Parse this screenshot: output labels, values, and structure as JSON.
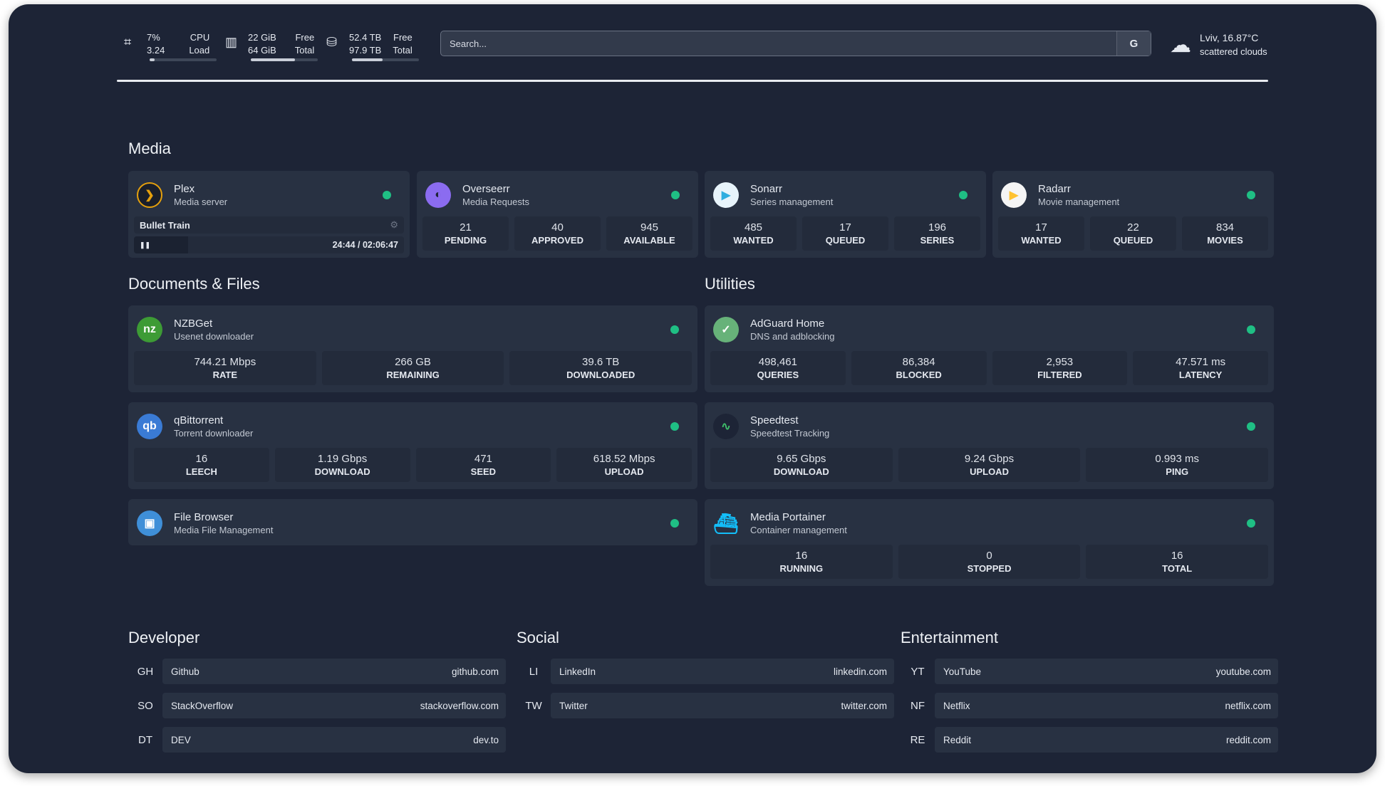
{
  "header": {
    "cpu": {
      "icon": "cpu-icon",
      "value1": "7%",
      "value2": "3.24",
      "label1": "CPU",
      "label2": "Load",
      "usage_percent": 7
    },
    "memory": {
      "icon": "memory-icon",
      "value1": "22 GiB",
      "value2": "64 GiB",
      "label1": "Free",
      "label2": "Total",
      "usage_percent": 66
    },
    "disk": {
      "icon": "disk-icon",
      "value1": "52.4 TB",
      "value2": "97.9 TB",
      "label1": "Free",
      "label2": "Total",
      "usage_percent": 46
    },
    "search": {
      "placeholder": "Search...",
      "button": "G"
    },
    "weather": {
      "icon": "cloud-icon",
      "location": "Lviv, 16.87°C",
      "condition": "scattered clouds"
    }
  },
  "colors": {
    "background": "#1d2436",
    "card": "#283142",
    "status_ok": "#1fbf84"
  },
  "media": {
    "title": "Media",
    "cards": [
      {
        "name": "Plex",
        "desc": "Media server",
        "icon": "plex-icon",
        "now_playing": {
          "title": "Bullet Train",
          "time": "24:44 / 02:06:47",
          "progress_percent": 20
        }
      },
      {
        "name": "Overseerr",
        "desc": "Media Requests",
        "icon": "overseerr-icon",
        "stats": [
          {
            "v": "21",
            "l": "PENDING"
          },
          {
            "v": "40",
            "l": "APPROVED"
          },
          {
            "v": "945",
            "l": "AVAILABLE"
          }
        ]
      },
      {
        "name": "Sonarr",
        "desc": "Series management",
        "icon": "sonarr-icon",
        "stats": [
          {
            "v": "485",
            "l": "WANTED"
          },
          {
            "v": "17",
            "l": "QUEUED"
          },
          {
            "v": "196",
            "l": "SERIES"
          }
        ]
      },
      {
        "name": "Radarr",
        "desc": "Movie management",
        "icon": "radarr-icon",
        "stats": [
          {
            "v": "17",
            "l": "WANTED"
          },
          {
            "v": "22",
            "l": "QUEUED"
          },
          {
            "v": "834",
            "l": "MOVIES"
          }
        ]
      }
    ]
  },
  "documents": {
    "title": "Documents & Files",
    "cards": [
      {
        "name": "NZBGet",
        "desc": "Usenet downloader",
        "icon": "nzbget-icon",
        "stats": [
          {
            "v": "744.21 Mbps",
            "l": "RATE"
          },
          {
            "v": "266 GB",
            "l": "REMAINING"
          },
          {
            "v": "39.6 TB",
            "l": "DOWNLOADED"
          }
        ]
      },
      {
        "name": "qBittorrent",
        "desc": "Torrent downloader",
        "icon": "qbittorrent-icon",
        "stats": [
          {
            "v": "16",
            "l": "LEECH"
          },
          {
            "v": "1.19 Gbps",
            "l": "DOWNLOAD"
          },
          {
            "v": "471",
            "l": "SEED"
          },
          {
            "v": "618.52 Mbps",
            "l": "UPLOAD"
          }
        ]
      },
      {
        "name": "File Browser",
        "desc": "Media File Management",
        "icon": "file-browser-icon"
      }
    ]
  },
  "utilities": {
    "title": "Utilities",
    "cards": [
      {
        "name": "AdGuard Home",
        "desc": "DNS and adblocking",
        "icon": "adguard-icon",
        "stats": [
          {
            "v": "498,461",
            "l": "QUERIES"
          },
          {
            "v": "86,384",
            "l": "BLOCKED"
          },
          {
            "v": "2,953",
            "l": "FILTERED"
          },
          {
            "v": "47.571 ms",
            "l": "LATENCY"
          }
        ]
      },
      {
        "name": "Speedtest",
        "desc": "Speedtest Tracking",
        "icon": "speedtest-icon",
        "stats": [
          {
            "v": "9.65 Gbps",
            "l": "DOWNLOAD"
          },
          {
            "v": "9.24 Gbps",
            "l": "UPLOAD"
          },
          {
            "v": "0.993 ms",
            "l": "PING"
          }
        ]
      },
      {
        "name": "Media Portainer",
        "desc": "Container management",
        "icon": "portainer-icon",
        "stats": [
          {
            "v": "16",
            "l": "RUNNING"
          },
          {
            "v": "0",
            "l": "STOPPED"
          },
          {
            "v": "16",
            "l": "TOTAL"
          }
        ]
      }
    ]
  },
  "bookmarks": [
    {
      "title": "Developer",
      "items": [
        {
          "abbr": "GH",
          "name": "Github",
          "url": "github.com"
        },
        {
          "abbr": "SO",
          "name": "StackOverflow",
          "url": "stackoverflow.com"
        },
        {
          "abbr": "DT",
          "name": "DEV",
          "url": "dev.to"
        }
      ]
    },
    {
      "title": "Social",
      "items": [
        {
          "abbr": "LI",
          "name": "LinkedIn",
          "url": "linkedin.com"
        },
        {
          "abbr": "TW",
          "name": "Twitter",
          "url": "twitter.com"
        }
      ]
    },
    {
      "title": "Entertainment",
      "items": [
        {
          "abbr": "YT",
          "name": "YouTube",
          "url": "youtube.com"
        },
        {
          "abbr": "NF",
          "name": "Netflix",
          "url": "netflix.com"
        },
        {
          "abbr": "RE",
          "name": "Reddit",
          "url": "reddit.com"
        }
      ]
    }
  ]
}
